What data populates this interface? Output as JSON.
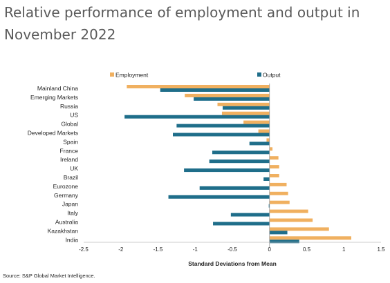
{
  "page": {
    "title": "Relative performance of employment and output in November 2022",
    "source": "Source: S&P Global Market Intelligence."
  },
  "chart_data": {
    "type": "bar",
    "orientation": "horizontal",
    "title": "Relative performance of employment and output in November 2022",
    "xlabel": "Standard Deviations from Mean",
    "ylabel": "",
    "xlim": [
      -2.5,
      1.5
    ],
    "xticks": [
      "-2.5",
      "-2",
      "-1.5",
      "-1",
      "-0.5",
      "0",
      "0.5",
      "1",
      "1.5"
    ],
    "grid": false,
    "legend_position": "top",
    "categories": [
      "Mainland China",
      "Emerging Markets",
      "Russia",
      "US",
      "Global",
      "Developed Markets",
      "Spain",
      "France",
      "Ireland",
      "UK",
      "Brazil",
      "Eurozone",
      "Germany",
      "Japan",
      "Italy",
      "Australia",
      "Kazakhstan",
      "India"
    ],
    "series": [
      {
        "name": "Employment",
        "color": "#f0b060",
        "values": [
          -1.92,
          -1.14,
          -0.7,
          -0.64,
          -0.35,
          -0.15,
          -0.04,
          0.04,
          0.12,
          0.13,
          0.13,
          0.23,
          0.25,
          0.27,
          0.52,
          0.58,
          0.8,
          1.1
        ]
      },
      {
        "name": "Output",
        "color": "#1f6e8a",
        "values": [
          -1.47,
          -1.02,
          -0.63,
          -1.95,
          -1.25,
          -1.3,
          -0.27,
          -0.77,
          -0.81,
          -1.15,
          -0.08,
          -0.94,
          -1.36,
          -0.01,
          -0.52,
          -0.76,
          0.24,
          0.4
        ]
      }
    ]
  }
}
